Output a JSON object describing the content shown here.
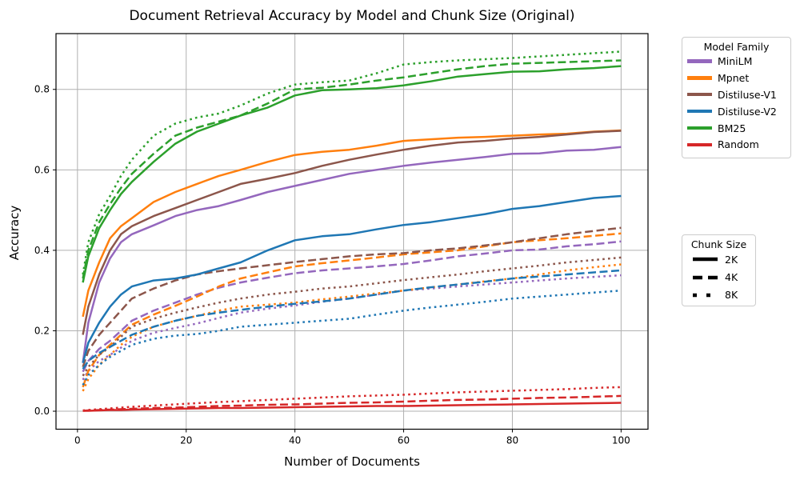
{
  "figure": {
    "title": "Document Retrieval Accuracy by Model and Chunk Size (Original)",
    "xlabel": "Number of Documents",
    "ylabel": "Accuracy"
  },
  "axes": {
    "x_tick_labels": [
      "0",
      "20",
      "40",
      "60",
      "80",
      "100"
    ],
    "x_ticks": [
      0,
      20,
      40,
      60,
      80,
      100
    ],
    "y_tick_labels": [
      "0.0",
      "0.2",
      "0.4",
      "0.6",
      "0.8"
    ],
    "y_ticks": [
      0.0,
      0.2,
      0.4,
      0.6,
      0.8
    ],
    "grid": true,
    "grid_color": "#b0b0b0"
  },
  "legends": {
    "model_family": {
      "title": "Model Family",
      "entries": [
        {
          "label": "MiniLM",
          "color": "#9467bd"
        },
        {
          "label": "Mpnet",
          "color": "#ff7f0e"
        },
        {
          "label": "Distiluse-V1",
          "color": "#8c564b"
        },
        {
          "label": "Distiluse-V2",
          "color": "#1f77b4"
        },
        {
          "label": "BM25",
          "color": "#2ca02c"
        },
        {
          "label": "Random",
          "color": "#d62728"
        }
      ]
    },
    "chunk_size": {
      "title": "Chunk Size",
      "entries": [
        {
          "label": "2K",
          "linestyle": "solid"
        },
        {
          "label": "4K",
          "linestyle": "dashed"
        },
        {
          "label": "8K",
          "linestyle": "dotted"
        }
      ]
    }
  },
  "chart_data": {
    "type": "line",
    "title": "Document Retrieval Accuracy by Model and Chunk Size (Original)",
    "xlabel": "Number of Documents",
    "ylabel": "Accuracy",
    "xlim": [
      -3.95,
      104.95
    ],
    "ylim": [
      -0.0447,
      0.9387
    ],
    "legend_position": "outside-right",
    "x": [
      1,
      2,
      4,
      6,
      8,
      10,
      14,
      18,
      22,
      26,
      30,
      35,
      40,
      45,
      50,
      55,
      60,
      65,
      70,
      75,
      80,
      85,
      90,
      95,
      100
    ],
    "series": [
      {
        "name": "MiniLM 2K",
        "family": "MiniLM",
        "chunk_size": "2K",
        "color": "#9467bd",
        "linestyle": "solid",
        "values": [
          0.12,
          0.22,
          0.32,
          0.38,
          0.42,
          0.44,
          0.462,
          0.485,
          0.5,
          0.51,
          0.525,
          0.545,
          0.56,
          0.575,
          0.59,
          0.6,
          0.61,
          0.618,
          0.625,
          0.632,
          0.64,
          0.641,
          0.648,
          0.65,
          0.657
        ]
      },
      {
        "name": "MiniLM 4K",
        "family": "MiniLM",
        "chunk_size": "4K",
        "color": "#9467bd",
        "linestyle": "dashed",
        "values": [
          0.098,
          0.125,
          0.155,
          0.175,
          0.2,
          0.225,
          0.25,
          0.27,
          0.29,
          0.307,
          0.32,
          0.332,
          0.343,
          0.35,
          0.355,
          0.36,
          0.366,
          0.375,
          0.385,
          0.392,
          0.4,
          0.402,
          0.41,
          0.415,
          0.422
        ]
      },
      {
        "name": "MiniLM 8K",
        "family": "MiniLM",
        "chunk_size": "8K",
        "color": "#9467bd",
        "linestyle": "dotted",
        "values": [
          0.078,
          0.1,
          0.125,
          0.14,
          0.158,
          0.175,
          0.195,
          0.207,
          0.218,
          0.232,
          0.245,
          0.255,
          0.263,
          0.272,
          0.28,
          0.29,
          0.3,
          0.305,
          0.31,
          0.315,
          0.32,
          0.325,
          0.33,
          0.334,
          0.338
        ]
      },
      {
        "name": "Mpnet 2K",
        "family": "Mpnet",
        "chunk_size": "2K",
        "color": "#ff7f0e",
        "linestyle": "solid",
        "values": [
          0.235,
          0.3,
          0.37,
          0.43,
          0.46,
          0.48,
          0.52,
          0.545,
          0.565,
          0.585,
          0.6,
          0.62,
          0.637,
          0.645,
          0.65,
          0.66,
          0.672,
          0.676,
          0.68,
          0.682,
          0.685,
          0.688,
          0.69,
          0.695,
          0.698
        ]
      },
      {
        "name": "Mpnet 4K",
        "family": "Mpnet",
        "chunk_size": "4K",
        "color": "#ff7f0e",
        "linestyle": "dashed",
        "values": [
          0.06,
          0.1,
          0.14,
          0.165,
          0.19,
          0.215,
          0.24,
          0.262,
          0.285,
          0.31,
          0.33,
          0.345,
          0.36,
          0.368,
          0.375,
          0.382,
          0.39,
          0.395,
          0.4,
          0.41,
          0.42,
          0.425,
          0.43,
          0.436,
          0.442
        ]
      },
      {
        "name": "Mpnet 8K",
        "family": "Mpnet",
        "chunk_size": "8K",
        "color": "#ff7f0e",
        "linestyle": "dotted",
        "values": [
          0.05,
          0.08,
          0.115,
          0.14,
          0.165,
          0.185,
          0.21,
          0.225,
          0.237,
          0.25,
          0.26,
          0.265,
          0.27,
          0.278,
          0.285,
          0.293,
          0.3,
          0.308,
          0.315,
          0.323,
          0.33,
          0.34,
          0.35,
          0.358,
          0.365
        ]
      },
      {
        "name": "Distiluse-V1 2K",
        "family": "Distiluse-V1",
        "chunk_size": "2K",
        "color": "#8c564b",
        "linestyle": "solid",
        "values": [
          0.19,
          0.26,
          0.34,
          0.4,
          0.44,
          0.46,
          0.485,
          0.505,
          0.525,
          0.545,
          0.565,
          0.578,
          0.592,
          0.61,
          0.625,
          0.638,
          0.65,
          0.66,
          0.668,
          0.672,
          0.678,
          0.682,
          0.688,
          0.694,
          0.697
        ]
      },
      {
        "name": "Distiluse-V1 4K",
        "family": "Distiluse-V1",
        "chunk_size": "4K",
        "color": "#8c564b",
        "linestyle": "dashed",
        "values": [
          0.11,
          0.15,
          0.19,
          0.22,
          0.25,
          0.28,
          0.305,
          0.325,
          0.34,
          0.348,
          0.355,
          0.363,
          0.371,
          0.378,
          0.385,
          0.39,
          0.393,
          0.4,
          0.405,
          0.412,
          0.42,
          0.43,
          0.44,
          0.448,
          0.456
        ]
      },
      {
        "name": "Distiluse-V1 8K",
        "family": "Distiluse-V1",
        "chunk_size": "8K",
        "color": "#8c564b",
        "linestyle": "dotted",
        "values": [
          0.088,
          0.11,
          0.14,
          0.16,
          0.185,
          0.21,
          0.23,
          0.245,
          0.258,
          0.27,
          0.28,
          0.29,
          0.297,
          0.305,
          0.31,
          0.318,
          0.326,
          0.333,
          0.34,
          0.348,
          0.355,
          0.362,
          0.37,
          0.376,
          0.382
        ]
      },
      {
        "name": "Distiluse-V2 2K",
        "family": "Distiluse-V2",
        "chunk_size": "2K",
        "color": "#1f77b4",
        "linestyle": "solid",
        "values": [
          0.12,
          0.17,
          0.22,
          0.26,
          0.29,
          0.31,
          0.325,
          0.33,
          0.34,
          0.355,
          0.37,
          0.4,
          0.425,
          0.435,
          0.44,
          0.452,
          0.463,
          0.47,
          0.48,
          0.49,
          0.503,
          0.51,
          0.52,
          0.53,
          0.535
        ]
      },
      {
        "name": "Distiluse-V2 4K",
        "family": "Distiluse-V2",
        "chunk_size": "4K",
        "color": "#1f77b4",
        "linestyle": "dashed",
        "values": [
          0.105,
          0.125,
          0.145,
          0.16,
          0.175,
          0.19,
          0.21,
          0.225,
          0.237,
          0.245,
          0.252,
          0.26,
          0.267,
          0.273,
          0.28,
          0.29,
          0.3,
          0.308,
          0.315,
          0.322,
          0.33,
          0.335,
          0.34,
          0.345,
          0.35
        ]
      },
      {
        "name": "Distiluse-V2 8K",
        "family": "Distiluse-V2",
        "chunk_size": "8K",
        "color": "#1f77b4",
        "linestyle": "dotted",
        "values": [
          0.065,
          0.09,
          0.115,
          0.135,
          0.15,
          0.165,
          0.18,
          0.188,
          0.192,
          0.2,
          0.21,
          0.215,
          0.22,
          0.225,
          0.23,
          0.24,
          0.25,
          0.258,
          0.265,
          0.272,
          0.28,
          0.285,
          0.29,
          0.295,
          0.3
        ]
      },
      {
        "name": "BM25 2K",
        "family": "BM25",
        "chunk_size": "2K",
        "color": "#2ca02c",
        "linestyle": "solid",
        "values": [
          0.32,
          0.385,
          0.455,
          0.5,
          0.54,
          0.57,
          0.62,
          0.665,
          0.695,
          0.715,
          0.735,
          0.755,
          0.785,
          0.798,
          0.8,
          0.803,
          0.81,
          0.82,
          0.832,
          0.838,
          0.844,
          0.845,
          0.85,
          0.853,
          0.858
        ]
      },
      {
        "name": "BM25 4K",
        "family": "BM25",
        "chunk_size": "4K",
        "color": "#2ca02c",
        "linestyle": "dashed",
        "values": [
          0.33,
          0.4,
          0.47,
          0.515,
          0.555,
          0.59,
          0.64,
          0.685,
          0.705,
          0.72,
          0.735,
          0.765,
          0.8,
          0.804,
          0.812,
          0.822,
          0.83,
          0.84,
          0.85,
          0.858,
          0.864,
          0.866,
          0.868,
          0.87,
          0.872
        ]
      },
      {
        "name": "BM25 8K",
        "family": "BM25",
        "chunk_size": "8K",
        "color": "#2ca02c",
        "linestyle": "dotted",
        "values": [
          0.34,
          0.42,
          0.49,
          0.535,
          0.585,
          0.625,
          0.685,
          0.715,
          0.73,
          0.74,
          0.76,
          0.79,
          0.812,
          0.818,
          0.822,
          0.84,
          0.862,
          0.868,
          0.872,
          0.875,
          0.878,
          0.882,
          0.886,
          0.89,
          0.894
        ]
      },
      {
        "name": "Random 2K",
        "family": "Random",
        "chunk_size": "2K",
        "color": "#d62728",
        "linestyle": "solid",
        "values": [
          0.001,
          0.001,
          0.002,
          0.003,
          0.003,
          0.004,
          0.005,
          0.006,
          0.007,
          0.008,
          0.008,
          0.009,
          0.01,
          0.011,
          0.012,
          0.013,
          0.013,
          0.014,
          0.015,
          0.016,
          0.017,
          0.018,
          0.019,
          0.02,
          0.021
        ]
      },
      {
        "name": "Random 4K",
        "family": "Random",
        "chunk_size": "4K",
        "color": "#d62728",
        "linestyle": "dashed",
        "values": [
          0.001,
          0.002,
          0.003,
          0.004,
          0.005,
          0.006,
          0.008,
          0.009,
          0.011,
          0.013,
          0.014,
          0.016,
          0.017,
          0.019,
          0.021,
          0.022,
          0.024,
          0.026,
          0.028,
          0.029,
          0.031,
          0.033,
          0.034,
          0.036,
          0.038
        ]
      },
      {
        "name": "Random 8K",
        "family": "Random",
        "chunk_size": "8K",
        "color": "#d62728",
        "linestyle": "dotted",
        "values": [
          0.002,
          0.003,
          0.005,
          0.007,
          0.009,
          0.011,
          0.014,
          0.017,
          0.02,
          0.023,
          0.025,
          0.028,
          0.031,
          0.034,
          0.037,
          0.039,
          0.041,
          0.044,
          0.047,
          0.049,
          0.051,
          0.053,
          0.055,
          0.058,
          0.06
        ]
      }
    ]
  }
}
